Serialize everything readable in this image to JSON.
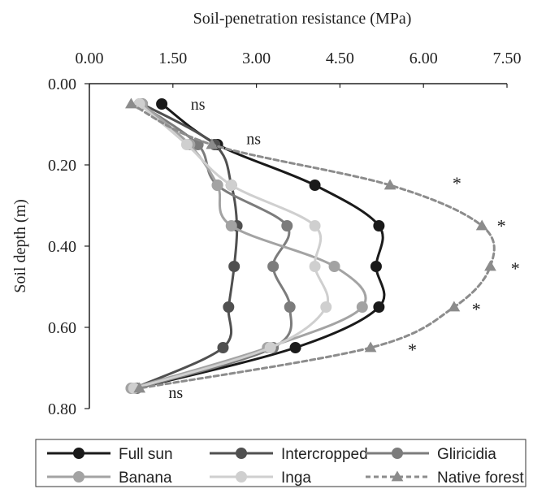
{
  "chart_data": {
    "type": "line",
    "xlabel": "Soil-penetration resistance (MPa)",
    "ylabel": "Soil depth (m)",
    "xlim": [
      0,
      7.5
    ],
    "ylim": [
      0,
      0.8
    ],
    "x_axis_position": "top",
    "y_axis_inverted": true,
    "grid": false,
    "legend_position": "bottom",
    "x_ticks": [
      "0.00",
      "1.50",
      "3.00",
      "4.50",
      "6.00",
      "7.50"
    ],
    "y_ticks": [
      "0.00",
      "0.20",
      "0.40",
      "0.60",
      "0.80"
    ],
    "series": [
      {
        "name": "Full sun",
        "color": "#1a1a1a",
        "line_style": "solid",
        "marker": "circle",
        "points": [
          [
            1.3,
            0.05
          ],
          [
            2.3,
            0.15
          ],
          [
            4.05,
            0.25
          ],
          [
            5.2,
            0.35
          ],
          [
            5.15,
            0.45
          ],
          [
            5.2,
            0.55
          ],
          [
            3.7,
            0.65
          ],
          [
            0.85,
            0.75
          ]
        ]
      },
      {
        "name": "Intercropped",
        "color": "#505050",
        "line_style": "solid",
        "marker": "circle",
        "points": [
          [
            0.95,
            0.05
          ],
          [
            2.25,
            0.15
          ],
          [
            2.55,
            0.25
          ],
          [
            2.65,
            0.35
          ],
          [
            2.6,
            0.45
          ],
          [
            2.5,
            0.55
          ],
          [
            2.4,
            0.65
          ],
          [
            0.8,
            0.75
          ]
        ]
      },
      {
        "name": "Gliricidia",
        "color": "#7c7c7c",
        "line_style": "solid",
        "marker": "circle",
        "points": [
          [
            0.9,
            0.05
          ],
          [
            1.95,
            0.15
          ],
          [
            2.3,
            0.25
          ],
          [
            3.55,
            0.35
          ],
          [
            3.3,
            0.45
          ],
          [
            3.6,
            0.55
          ],
          [
            3.3,
            0.65
          ],
          [
            0.85,
            0.75
          ]
        ]
      },
      {
        "name": "Banana",
        "color": "#a3a3a3",
        "line_style": "solid",
        "marker": "circle",
        "points": [
          [
            0.95,
            0.05
          ],
          [
            1.8,
            0.15
          ],
          [
            2.3,
            0.25
          ],
          [
            2.55,
            0.35
          ],
          [
            4.4,
            0.45
          ],
          [
            4.9,
            0.55
          ],
          [
            3.2,
            0.65
          ],
          [
            0.75,
            0.75
          ]
        ]
      },
      {
        "name": "Inga",
        "color": "#cfcfcf",
        "line_style": "solid",
        "marker": "circle",
        "points": [
          [
            0.9,
            0.05
          ],
          [
            1.75,
            0.15
          ],
          [
            2.55,
            0.25
          ],
          [
            4.05,
            0.35
          ],
          [
            4.05,
            0.45
          ],
          [
            4.25,
            0.55
          ],
          [
            3.25,
            0.65
          ],
          [
            0.8,
            0.75
          ]
        ]
      },
      {
        "name": "Native forest",
        "color": "#8c8c8c",
        "line_style": "dashed",
        "marker": "triangle",
        "points": [
          [
            0.75,
            0.05
          ],
          [
            2.2,
            0.15
          ],
          [
            5.4,
            0.25
          ],
          [
            7.05,
            0.35
          ],
          [
            7.2,
            0.45
          ],
          [
            6.55,
            0.55
          ],
          [
            5.05,
            0.65
          ],
          [
            0.9,
            0.75
          ]
        ]
      }
    ],
    "annotations": [
      {
        "text": "ns",
        "x": 1.95,
        "y": 0.055
      },
      {
        "text": "ns",
        "x": 2.95,
        "y": 0.14
      },
      {
        "text": "*",
        "x": 6.6,
        "y": 0.25
      },
      {
        "text": "*",
        "x": 7.4,
        "y": 0.355
      },
      {
        "text": "*",
        "x": 7.65,
        "y": 0.46
      },
      {
        "text": "*",
        "x": 6.95,
        "y": 0.56
      },
      {
        "text": "*",
        "x": 5.8,
        "y": 0.66
      },
      {
        "text": "ns",
        "x": 1.55,
        "y": 0.765
      }
    ]
  }
}
